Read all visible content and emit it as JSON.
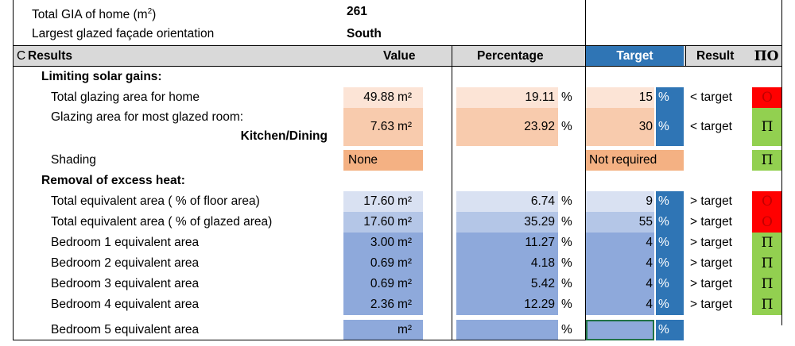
{
  "top": {
    "gia_label": "Total GIA of home (m",
    "gia_sup": "2",
    "gia_close": ")",
    "gia_value": "261",
    "orient_label": "Largest glazed façade orientation",
    "orient_value": "South"
  },
  "header": {
    "section": "C",
    "results": "Results",
    "value": "Value",
    "percentage": "Percentage",
    "target": "Target",
    "result": "Result",
    "flag": "ΠΟ"
  },
  "solar": {
    "title": "Limiting solar gains:",
    "total_label": "Total glazing area for home",
    "total_value": "49.88",
    "total_unit": "m²",
    "total_pct": "19.11",
    "total_pct_unit": "%",
    "total_target": "15",
    "total_target_unit": "%",
    "total_result": "< target",
    "total_flag": "Ο",
    "room_label": "Glazing area for most glazed room:",
    "room_name": "Kitchen/Dining",
    "room_value": "7.63",
    "room_unit": "m²",
    "room_pct": "23.92",
    "room_pct_unit": "%",
    "room_target": "30",
    "room_target_unit": "%",
    "room_result": "< target",
    "room_flag": "Π",
    "shading_label": "Shading",
    "shading_value": "None",
    "shading_target": "Not required",
    "shading_flag": "Π"
  },
  "heat": {
    "title": "Removal of excess heat:",
    "rows": [
      {
        "label": "Total equivalent area ( % of floor area)",
        "value": "17.60",
        "unit": "m²",
        "pct": "6.74",
        "pct_unit": "%",
        "target": "9",
        "target_unit": "%",
        "result": "> target",
        "flag": "Ο"
      },
      {
        "label": "Total equivalent area ( % of glazed area)",
        "value": "17.60",
        "unit": "m²",
        "pct": "35.29",
        "pct_unit": "%",
        "target": "55",
        "target_unit": "%",
        "result": "> target",
        "flag": "Ο"
      },
      {
        "label": "Bedroom 1 equivalent area",
        "value": "3.00",
        "unit": "m²",
        "pct": "11.27",
        "pct_unit": "%",
        "target": "4",
        "target_unit": "%",
        "result": "> target",
        "flag": "Π"
      },
      {
        "label": "Bedroom 2 equivalent area",
        "value": "0.69",
        "unit": "m²",
        "pct": "4.18",
        "pct_unit": "%",
        "target": "4",
        "target_unit": "%",
        "result": "> target",
        "flag": "Π"
      },
      {
        "label": "Bedroom 3 equivalent area",
        "value": "0.69",
        "unit": "m²",
        "pct": "5.42",
        "pct_unit": "%",
        "target": "4",
        "target_unit": "%",
        "result": "> target",
        "flag": "Π"
      },
      {
        "label": "Bedroom 4 equivalent area",
        "value": "2.36",
        "unit": "m²",
        "pct": "12.29",
        "pct_unit": "%",
        "target": "4",
        "target_unit": "%",
        "result": "> target",
        "flag": "Π"
      },
      {
        "label": "Bedroom 5 equivalent area",
        "value": "",
        "unit": "m²",
        "pct": "",
        "pct_unit": "%",
        "target": "",
        "target_unit": "%",
        "result": "",
        "flag": ""
      }
    ]
  },
  "colors": {
    "peach_light": "#fce4d6",
    "peach_mid": "#f8cbad",
    "peach_dark": "#f4b183",
    "blue_light": "#d9e1f2",
    "blue_mid": "#b4c6e7",
    "blue_dark": "#8ea9db",
    "blue_strong": "#2f75b5",
    "fail_red": "#ff0000",
    "pass_green": "#92d050",
    "header_gray": "#d9d9d9"
  }
}
